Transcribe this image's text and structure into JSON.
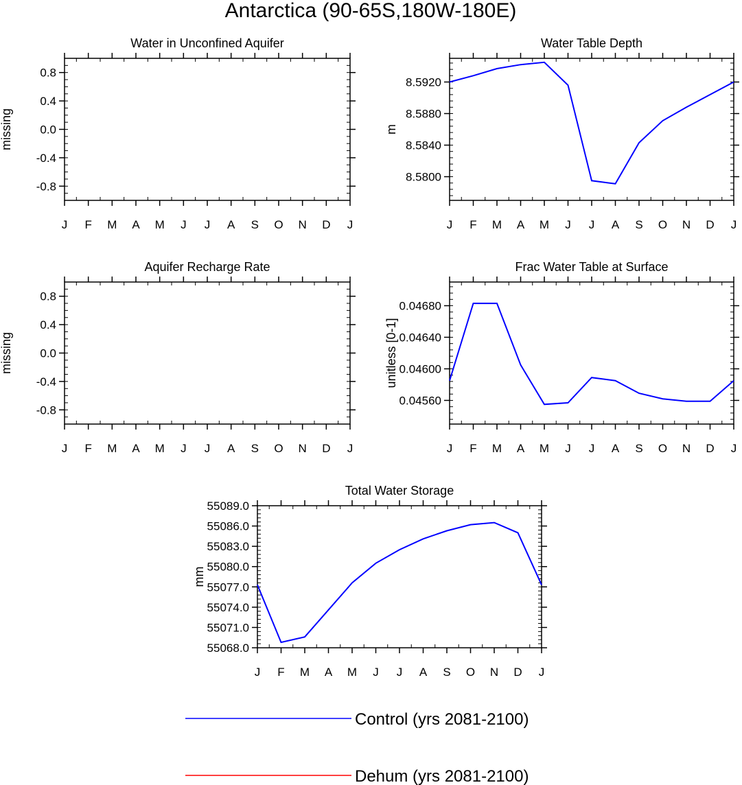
{
  "figure_title": "Antarctica (90-65S,180W-180E)",
  "month_labels": [
    "J",
    "F",
    "M",
    "A",
    "M",
    "J",
    "J",
    "A",
    "S",
    "O",
    "N",
    "D",
    "J"
  ],
  "colors": {
    "control": "#0000ff",
    "dehum": "#ff0000",
    "axis": "#000000"
  },
  "legend": [
    {
      "label": "Control (yrs 2081-2100)",
      "color": "#0000ff"
    },
    {
      "label": "Dehum (yrs 2081-2100)",
      "color": "#ff0000"
    }
  ],
  "chart_data": [
    {
      "type": "line",
      "title": "Water in Unconfined Aquifer",
      "ylabel": "missing",
      "ylim": [
        -1.0,
        1.0
      ],
      "yticks": [
        -0.8,
        -0.4,
        0.0,
        0.4,
        0.8
      ],
      "ytick_labels": [
        "-0.8",
        "-0.4",
        "0.0",
        "0.4",
        "0.8"
      ],
      "y_minor_step": 0.1,
      "series": []
    },
    {
      "type": "line",
      "title": "Water Table Depth",
      "ylabel": "m",
      "ylim": [
        8.577,
        8.595
      ],
      "yticks": [
        8.58,
        8.584,
        8.588,
        8.592
      ],
      "ytick_labels": [
        "8.5800",
        "8.5840",
        "8.5880",
        "8.5920"
      ],
      "y_minor_step": 0.0008,
      "series": [
        {
          "name": "Control (yrs 2081-2100)",
          "color": "#0000ff",
          "values": [
            8.592,
            8.5928,
            8.5937,
            8.5942,
            8.5945,
            8.5916,
            8.5795,
            8.5791,
            8.5843,
            8.5871,
            8.5888,
            8.5904,
            8.592
          ]
        }
      ]
    },
    {
      "type": "line",
      "title": "Aquifer Recharge Rate",
      "ylabel": "missing",
      "ylim": [
        -1.0,
        1.0
      ],
      "yticks": [
        -0.8,
        -0.4,
        0.0,
        0.4,
        0.8
      ],
      "ytick_labels": [
        "-0.8",
        "-0.4",
        "0.0",
        "0.4",
        "0.8"
      ],
      "y_minor_step": 0.1,
      "series": []
    },
    {
      "type": "line",
      "title": "Frac Water Table at Surface",
      "ylabel": "unitless [0-1]",
      "ylim": [
        0.0453,
        0.0471
      ],
      "yticks": [
        0.0456,
        0.046,
        0.0464,
        0.0468
      ],
      "ytick_labels": [
        "0.04560",
        "0.04600",
        "0.04640",
        "0.04680"
      ],
      "y_minor_step": 8e-05,
      "series": [
        {
          "name": "Control (yrs 2081-2100)",
          "color": "#0000ff",
          "values": [
            0.04585,
            0.04683,
            0.04683,
            0.04605,
            0.04555,
            0.04557,
            0.04589,
            0.04585,
            0.04569,
            0.04562,
            0.04559,
            0.04559,
            0.04585
          ]
        }
      ]
    },
    {
      "type": "line",
      "title": "Total Water Storage",
      "ylabel": "mm",
      "ylim": [
        55068.0,
        55089.0
      ],
      "yticks": [
        55068.0,
        55071.0,
        55074.0,
        55077.0,
        55080.0,
        55083.0,
        55086.0,
        55089.0
      ],
      "ytick_labels": [
        "55068.0",
        "55071.0",
        "55074.0",
        "55077.0",
        "55080.0",
        "55083.0",
        "55086.0",
        "55089.0"
      ],
      "y_minor_step": 0.6,
      "series": [
        {
          "name": "Control (yrs 2081-2100)",
          "color": "#0000ff",
          "values": [
            55077.3,
            55068.8,
            55069.6,
            55073.6,
            55077.6,
            55080.5,
            55082.5,
            55084.1,
            55085.3,
            55086.2,
            55086.5,
            55085.0,
            55077.3
          ]
        }
      ]
    }
  ]
}
